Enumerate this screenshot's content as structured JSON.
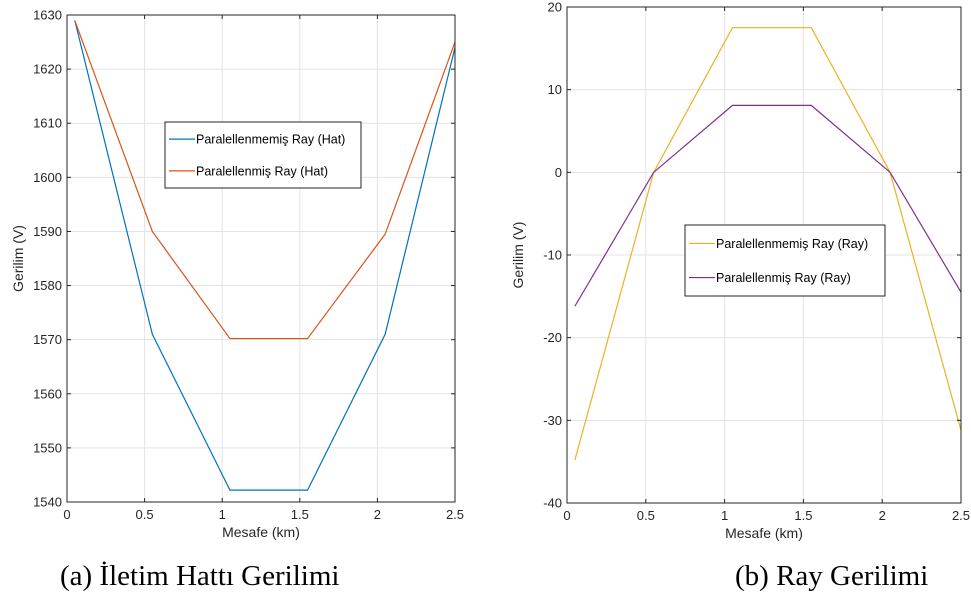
{
  "chart_data": [
    {
      "type": "line",
      "xlabel": "Mesafe (km)",
      "ylabel": "Gerilim (V)",
      "xlim": [
        0,
        2.5
      ],
      "ylim": [
        1540,
        1630
      ],
      "xticks": [
        0,
        0.5,
        1,
        1.5,
        2,
        2.5
      ],
      "xtick_labels": [
        "0",
        "0.5",
        "1",
        "1.5",
        "2",
        "2.5"
      ],
      "yticks": [
        1540,
        1550,
        1560,
        1570,
        1580,
        1590,
        1600,
        1610,
        1620,
        1630
      ],
      "ytick_labels": [
        "1540",
        "1550",
        "1560",
        "1570",
        "1580",
        "1590",
        "1600",
        "1610",
        "1620",
        "1630"
      ],
      "grid": true,
      "legend_position": "center",
      "series": [
        {
          "name": "Paralellenmemiş Ray (Hat)",
          "color": "#0072BD",
          "x": [
            0.05,
            0.55,
            1.05,
            1.55,
            2.05,
            2.5
          ],
          "y": [
            1629,
            1571,
            1542.2,
            1542.2,
            1571,
            1624
          ]
        },
        {
          "name": "Paralellenmiş Ray (Hat)",
          "color": "#D95319",
          "x": [
            0.05,
            0.55,
            1.05,
            1.55,
            2.05,
            2.5
          ],
          "y": [
            1629,
            1590,
            1570.2,
            1570.2,
            1589.5,
            1625
          ]
        }
      ]
    },
    {
      "type": "line",
      "xlabel": "Mesafe (km)",
      "ylabel": "Gerilim (V)",
      "xlim": [
        0,
        2.5
      ],
      "ylim": [
        -40,
        20
      ],
      "xticks": [
        0,
        0.5,
        1,
        1.5,
        2,
        2.5
      ],
      "xtick_labels": [
        "0",
        "0.5",
        "1",
        "1.5",
        "2",
        "2.5"
      ],
      "yticks": [
        -40,
        -30,
        -20,
        -10,
        0,
        10,
        20
      ],
      "ytick_labels": [
        "-40",
        "-30",
        "-20",
        "-10",
        "0",
        "10",
        "20"
      ],
      "grid": true,
      "legend_position": "center",
      "series": [
        {
          "name": "Paralellenmemiş Ray (Ray)",
          "color": "#EDB120",
          "x": [
            0.05,
            0.55,
            1.05,
            1.55,
            2.05,
            2.5
          ],
          "y": [
            -34.8,
            0,
            17.5,
            17.5,
            0,
            -31.2
          ]
        },
        {
          "name": "Paralellenmiş Ray (Ray)",
          "color": "#7E2F8E",
          "x": [
            0.05,
            0.55,
            1.05,
            1.55,
            2.05,
            2.5
          ],
          "y": [
            -16.2,
            0,
            8.1,
            8.1,
            0,
            -14.5
          ]
        }
      ]
    }
  ],
  "captions": {
    "a": "(a) İletim Hattı Gerilimi",
    "b": "(b) Ray Gerilimi"
  }
}
